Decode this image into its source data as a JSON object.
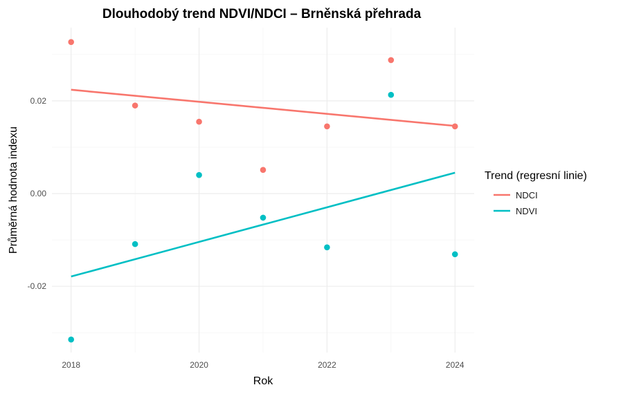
{
  "chart_data": {
    "type": "scatter",
    "title": "Dlouhodobý trend NDVI/NDCI – Brněnská přehrada",
    "xlabel": "Rok",
    "ylabel": "Průměrná hodnota indexu",
    "xlim": [
      2017.7,
      2024.3
    ],
    "ylim": [
      -0.0343,
      0.0358
    ],
    "x_ticks": [
      2018,
      2020,
      2022,
      2024
    ],
    "x_tick_labels": [
      "2018",
      "2020",
      "2022",
      "2024"
    ],
    "y_ticks": [
      -0.02,
      0.0,
      0.02
    ],
    "y_tick_labels": [
      "-0.02",
      "0.00",
      "0.02"
    ],
    "grid": true,
    "legend": {
      "title": "Trend (regresní linie)",
      "placement": "right"
    },
    "series": [
      {
        "name": "NDCI",
        "color": "#F8766D",
        "x": [
          2018,
          2019,
          2020,
          2021,
          2022,
          2023,
          2024
        ],
        "y": [
          0.0327,
          0.019,
          0.0155,
          0.0051,
          0.0145,
          0.0288,
          0.0145
        ],
        "trend": {
          "x": [
            2018,
            2024
          ],
          "y": [
            0.0224,
            0.0146
          ]
        }
      },
      {
        "name": "NDVI",
        "color": "#00BFC4",
        "x": [
          2018,
          2019,
          2020,
          2021,
          2022,
          2023,
          2024
        ],
        "y": [
          -0.0315,
          -0.0109,
          0.004,
          -0.0052,
          -0.0116,
          0.0213,
          -0.0131
        ],
        "trend": {
          "x": [
            2018,
            2024
          ],
          "y": [
            -0.0179,
            0.0045
          ]
        }
      }
    ]
  }
}
